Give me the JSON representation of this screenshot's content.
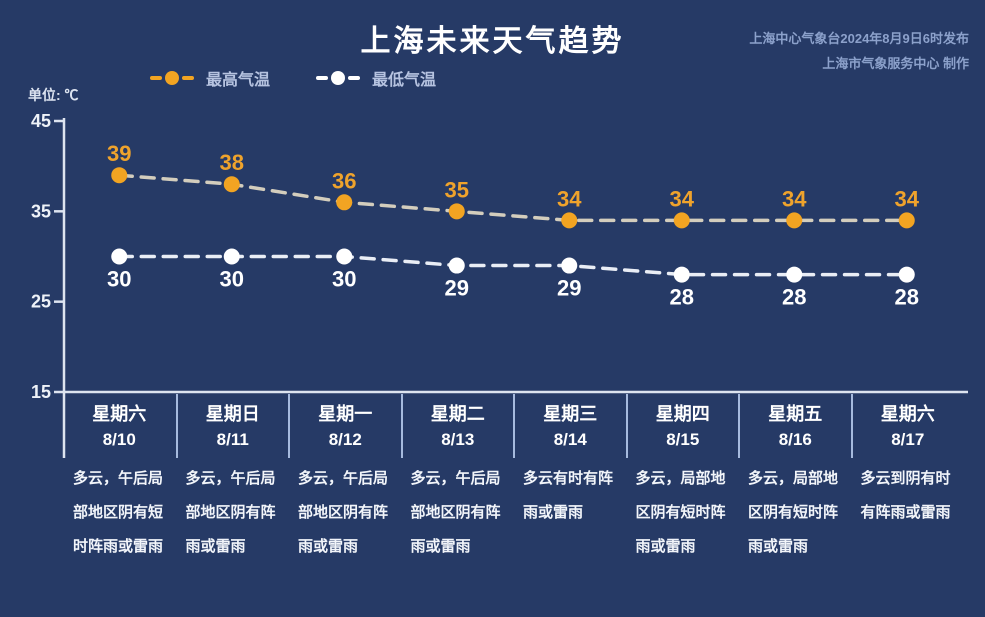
{
  "header": {
    "title": "上海未来天气趋势",
    "credit_line1": "上海中心气象台2024年8月9日6时发布",
    "credit_line2": "上海市气象服务中心 制作"
  },
  "unit_label": "单位: ℃",
  "colors": {
    "background": "#263a66",
    "axis": "#dde4f0",
    "tick_label": "#eef2f8",
    "divider": "#a6bade",
    "high_marker": "#f2a422",
    "high_line": "#d3cdbd",
    "high_value_label": "#efa32c",
    "low_marker": "#ffffff",
    "low_line": "#e9edf5",
    "low_value_label": "#ffffff",
    "credit_text": "#8ca1cb",
    "legend_text": "#b6c3e0"
  },
  "chart_data": {
    "type": "line",
    "title": "上海未来天气趋势",
    "ylabel": "单位: ℃",
    "ylim": [
      15,
      45
    ],
    "yticks": [
      45,
      35,
      25,
      15
    ],
    "grid": false,
    "line_style": "dashed",
    "legend_position": "top-left",
    "categories": [
      "星期六 8/10",
      "星期日 8/11",
      "星期一 8/12",
      "星期二 8/13",
      "星期三 8/14",
      "星期四 8/15",
      "星期五 8/16",
      "星期六 8/17"
    ],
    "series": [
      {
        "name": "最高气温",
        "marker_color": "#f2a422",
        "line_color": "#d3cdbd",
        "value_label_color": "#efa32c",
        "values": [
          39,
          38,
          36,
          35,
          34,
          34,
          34,
          34
        ]
      },
      {
        "name": "最低气温",
        "marker_color": "#ffffff",
        "line_color": "#e9edf5",
        "value_label_color": "#ffffff",
        "values": [
          30,
          30,
          30,
          29,
          29,
          28,
          28,
          28
        ]
      }
    ]
  },
  "forecast": {
    "days": [
      {
        "weekday": "星期六",
        "date": "8/10",
        "desc": "多云，午后局部地区阴有短时阵雨或雷雨",
        "desc_lines": [
          "多云，午后局",
          "部地区阴有短",
          "时阵雨或雷雨"
        ]
      },
      {
        "weekday": "星期日",
        "date": "8/11",
        "desc": "多云，午后局部地区阴有阵雨或雷雨",
        "desc_lines": [
          "多云，午后局",
          "部地区阴有阵",
          "雨或雷雨"
        ]
      },
      {
        "weekday": "星期一",
        "date": "8/12",
        "desc": "多云，午后局部地区阴有阵雨或雷雨",
        "desc_lines": [
          "多云，午后局",
          "部地区阴有阵",
          "雨或雷雨"
        ]
      },
      {
        "weekday": "星期二",
        "date": "8/13",
        "desc": "多云，午后局部地区阴有阵雨或雷雨",
        "desc_lines": [
          "多云，午后局",
          "部地区阴有阵",
          "雨或雷雨"
        ]
      },
      {
        "weekday": "星期三",
        "date": "8/14",
        "desc": "多云有时有阵雨或雷雨",
        "desc_lines": [
          "多云有时有阵",
          "雨或雷雨"
        ]
      },
      {
        "weekday": "星期四",
        "date": "8/15",
        "desc": "多云，局部地区阴有短时阵雨或雷雨",
        "desc_lines": [
          "多云，局部地",
          "区阴有短时阵",
          "雨或雷雨"
        ]
      },
      {
        "weekday": "星期五",
        "date": "8/16",
        "desc": "多云，局部地区阴有短时阵雨或雷雨",
        "desc_lines": [
          "多云，局部地",
          "区阴有短时阵",
          "雨或雷雨"
        ]
      },
      {
        "weekday": "星期六",
        "date": "8/17",
        "desc": "多云到阴有时有阵雨或雷雨",
        "desc_lines": [
          "多云到阴有时",
          "有阵雨或雷雨"
        ]
      }
    ]
  }
}
